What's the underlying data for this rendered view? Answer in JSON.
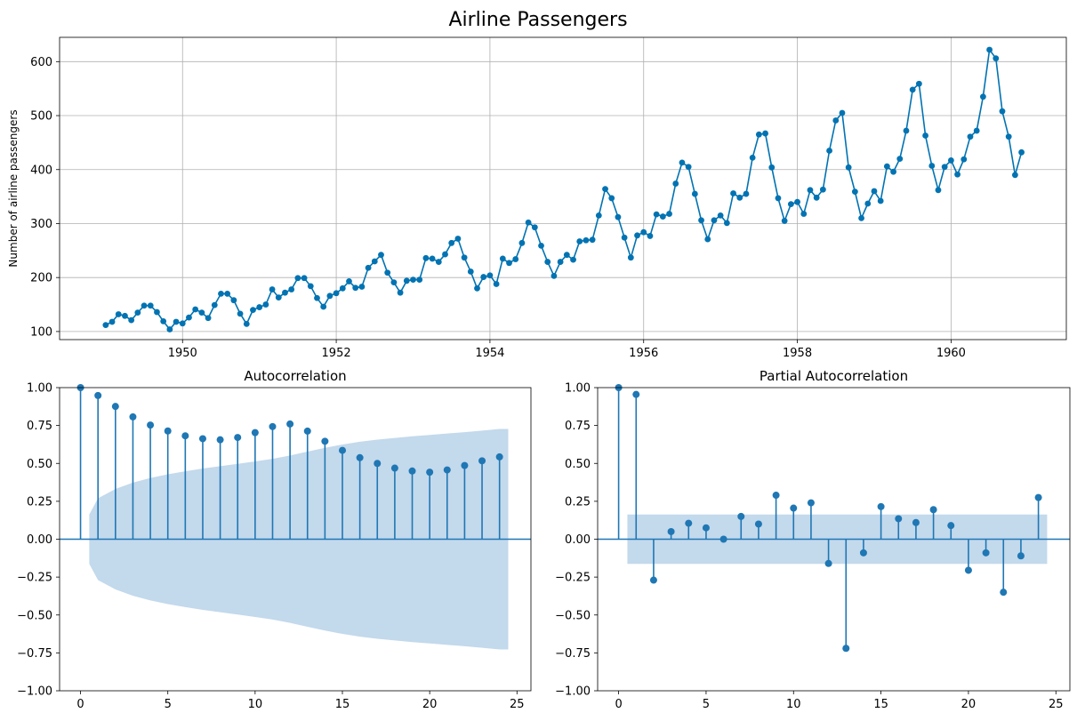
{
  "figure_title": "Airline Passengers",
  "chart_data": [
    {
      "type": "line",
      "title": "",
      "xlabel": "",
      "ylabel": "Number of airline passengers",
      "x_start": 1949.0,
      "x_step": 0.0833333,
      "xlim": [
        1948.4,
        1961.5
      ],
      "ylim": [
        85,
        645
      ],
      "xticks": [
        1950,
        1952,
        1954,
        1956,
        1958,
        1960
      ],
      "xtick_labels": [
        "1950",
        "1952",
        "1954",
        "1956",
        "1958",
        "1960"
      ],
      "yticks": [
        100,
        200,
        300,
        400,
        500,
        600
      ],
      "ytick_labels": [
        "100",
        "200",
        "300",
        "400",
        "500",
        "600"
      ],
      "grid": true,
      "color": "#0173b2",
      "values": [
        112,
        118,
        132,
        129,
        121,
        135,
        148,
        148,
        136,
        119,
        104,
        118,
        115,
        126,
        141,
        135,
        125,
        149,
        170,
        170,
        158,
        133,
        114,
        140,
        145,
        150,
        178,
        163,
        172,
        178,
        199,
        199,
        184,
        162,
        146,
        166,
        171,
        180,
        193,
        181,
        183,
        218,
        230,
        242,
        209,
        191,
        172,
        194,
        196,
        196,
        236,
        235,
        229,
        243,
        264,
        272,
        237,
        211,
        180,
        201,
        204,
        188,
        235,
        227,
        234,
        264,
        302,
        293,
        259,
        229,
        203,
        229,
        242,
        233,
        267,
        269,
        270,
        315,
        364,
        347,
        312,
        274,
        237,
        278,
        284,
        277,
        317,
        313,
        318,
        374,
        413,
        405,
        355,
        306,
        271,
        306,
        315,
        301,
        356,
        348,
        355,
        422,
        465,
        467,
        404,
        347,
        305,
        336,
        340,
        318,
        362,
        348,
        363,
        435,
        491,
        505,
        404,
        359,
        310,
        337,
        360,
        342,
        406,
        396,
        420,
        472,
        548,
        559,
        463,
        407,
        362,
        405,
        417,
        391,
        419,
        461,
        472,
        535,
        622,
        606,
        508,
        461,
        390,
        432
      ]
    },
    {
      "type": "stem",
      "title": "Autocorrelation",
      "lags": [
        0,
        1,
        2,
        3,
        4,
        5,
        6,
        7,
        8,
        9,
        10,
        11,
        12,
        13,
        14,
        15,
        16,
        17,
        18,
        19,
        20,
        21,
        22,
        23,
        24
      ],
      "values": [
        1.0,
        0.948,
        0.876,
        0.807,
        0.753,
        0.714,
        0.682,
        0.663,
        0.656,
        0.671,
        0.703,
        0.743,
        0.76,
        0.713,
        0.646,
        0.586,
        0.538,
        0.5,
        0.469,
        0.45,
        0.442,
        0.457,
        0.486,
        0.517,
        0.543
      ],
      "confint_upper": [
        0.163,
        0.27,
        0.331,
        0.373,
        0.404,
        0.428,
        0.448,
        0.466,
        0.482,
        0.497,
        0.513,
        0.53,
        0.552,
        0.578,
        0.603,
        0.625,
        0.643,
        0.657,
        0.668,
        0.679,
        0.688,
        0.697,
        0.706,
        0.716,
        0.727
      ],
      "xlim": [
        -1.2,
        25.8
      ],
      "ylim": [
        -1.0,
        1.0
      ],
      "xticks": [
        0,
        5,
        10,
        15,
        20,
        25
      ],
      "xtick_labels": [
        "0",
        "5",
        "10",
        "15",
        "20",
        "25"
      ],
      "yticks": [
        -1.0,
        -0.75,
        -0.5,
        -0.25,
        0.0,
        0.25,
        0.5,
        0.75,
        1.0
      ],
      "ytick_labels": [
        "−1.00",
        "−0.75",
        "−0.50",
        "−0.25",
        "0.00",
        "0.25",
        "0.50",
        "0.75",
        "1.00"
      ],
      "color": "#1f77b4",
      "band_color": "#c3d9ec"
    },
    {
      "type": "stem",
      "title": "Partial Autocorrelation",
      "lags": [
        0,
        1,
        2,
        3,
        4,
        5,
        6,
        7,
        8,
        9,
        10,
        11,
        12,
        13,
        14,
        15,
        16,
        17,
        18,
        19,
        20,
        21,
        22,
        23,
        24
      ],
      "values": [
        1.0,
        0.955,
        -0.27,
        0.05,
        0.105,
        0.075,
        0.0,
        0.15,
        0.1,
        0.29,
        0.205,
        0.24,
        -0.16,
        -0.72,
        -0.09,
        0.215,
        0.135,
        0.11,
        0.195,
        0.09,
        -0.205,
        -0.09,
        -0.35,
        -0.11,
        0.275
      ],
      "conf": 0.163,
      "xlim": [
        -1.2,
        25.8
      ],
      "ylim": [
        -1.0,
        1.0
      ],
      "xticks": [
        0,
        5,
        10,
        15,
        20,
        25
      ],
      "xtick_labels": [
        "0",
        "5",
        "10",
        "15",
        "20",
        "25"
      ],
      "yticks": [
        -1.0,
        -0.75,
        -0.5,
        -0.25,
        0.0,
        0.25,
        0.5,
        0.75,
        1.0
      ],
      "ytick_labels": [
        "−1.00",
        "−0.75",
        "−0.50",
        "−0.25",
        "0.00",
        "0.25",
        "0.50",
        "0.75",
        "1.00"
      ],
      "color": "#1f77b4",
      "band_color": "#c3d9ec"
    }
  ]
}
